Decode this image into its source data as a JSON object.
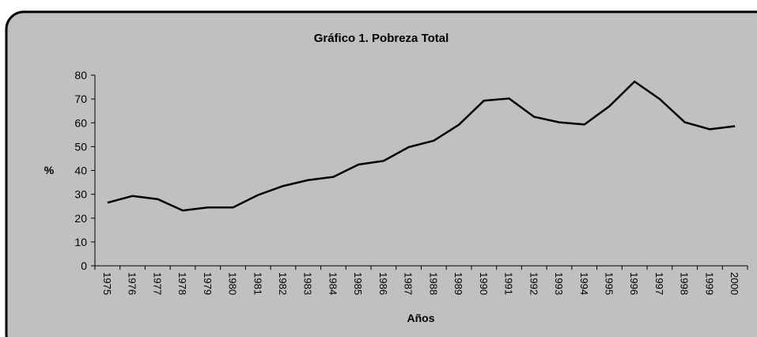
{
  "chart_data": {
    "type": "line",
    "title": "Gráfico 1. Pobreza Total",
    "x_label": "Años",
    "y_label": "%",
    "categories": [
      "1975",
      "1976",
      "1977",
      "1978",
      "1979",
      "1980",
      "1981",
      "1982",
      "1983",
      "1984",
      "1985",
      "1986",
      "1987",
      "1988",
      "1989",
      "1990",
      "1991",
      "1992",
      "1993",
      "1994",
      "1995",
      "1996",
      "1997",
      "1998",
      "1999",
      "2000"
    ],
    "series": [
      {
        "name": "Pobreza Total",
        "color": "#000000",
        "values": [
          26.5,
          29.3,
          28,
          23.2,
          24.5,
          24.5,
          29.7,
          33.5,
          36,
          37.3,
          42.5,
          44,
          49.8,
          52.5,
          59.2,
          69.3,
          70.2,
          62.5,
          60.2,
          59.3,
          67,
          77.3,
          70,
          60.2,
          57.3,
          58.6
        ]
      }
    ],
    "ylim": [
      0,
      80
    ],
    "yticks": [
      0,
      10,
      20,
      30,
      40,
      50,
      60,
      70,
      80
    ],
    "grid": false
  }
}
